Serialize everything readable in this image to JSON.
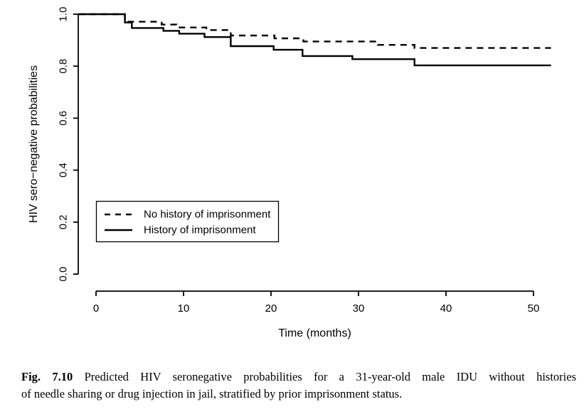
{
  "caption": {
    "label": "Fig. 7.10",
    "line1": "Predicted HIV seronegative probabilities for a 31-year-old male IDU without histories",
    "line2": "of needle sharing or drug injection in jail, stratified by prior imprisonment status."
  },
  "chart_data": {
    "type": "line",
    "subtype": "kaplan-meier-step",
    "title": "",
    "xlabel": "Time (months)",
    "ylabel": "HIV sero−negative probabilities",
    "xlim": [
      0,
      52
    ],
    "ylim": [
      0.0,
      1.0
    ],
    "x_ticks": [
      0,
      10,
      20,
      30,
      40,
      50
    ],
    "y_ticks": [
      "0.0",
      "0.2",
      "0.4",
      "0.6",
      "0.8",
      "1.0"
    ],
    "grid": false,
    "line_color": "#000000",
    "legend_position": "inside-left-middle",
    "series": [
      {
        "name": "No history of imprisonment",
        "line_style": "dashed",
        "steps_time_probability": [
          [
            0,
            1.0
          ],
          [
            3.3,
            0.971
          ],
          [
            7.5,
            0.96
          ],
          [
            9.2,
            0.949
          ],
          [
            12.6,
            0.939
          ],
          [
            15.4,
            0.918
          ],
          [
            20.4,
            0.907
          ],
          [
            23.7,
            0.895
          ],
          [
            32.2,
            0.882
          ],
          [
            36.4,
            0.87
          ],
          [
            52,
            0.87
          ]
        ]
      },
      {
        "name": "History of imprisonment",
        "line_style": "solid",
        "steps_time_probability": [
          [
            0,
            1.0
          ],
          [
            3.3,
            0.968
          ],
          [
            4.1,
            0.947
          ],
          [
            7.7,
            0.936
          ],
          [
            9.5,
            0.925
          ],
          [
            12.4,
            0.912
          ],
          [
            15.4,
            0.877
          ],
          [
            20.3,
            0.863
          ],
          [
            23.6,
            0.839
          ],
          [
            29.3,
            0.827
          ],
          [
            36.4,
            0.803
          ],
          [
            52,
            0.803
          ]
        ]
      }
    ]
  }
}
